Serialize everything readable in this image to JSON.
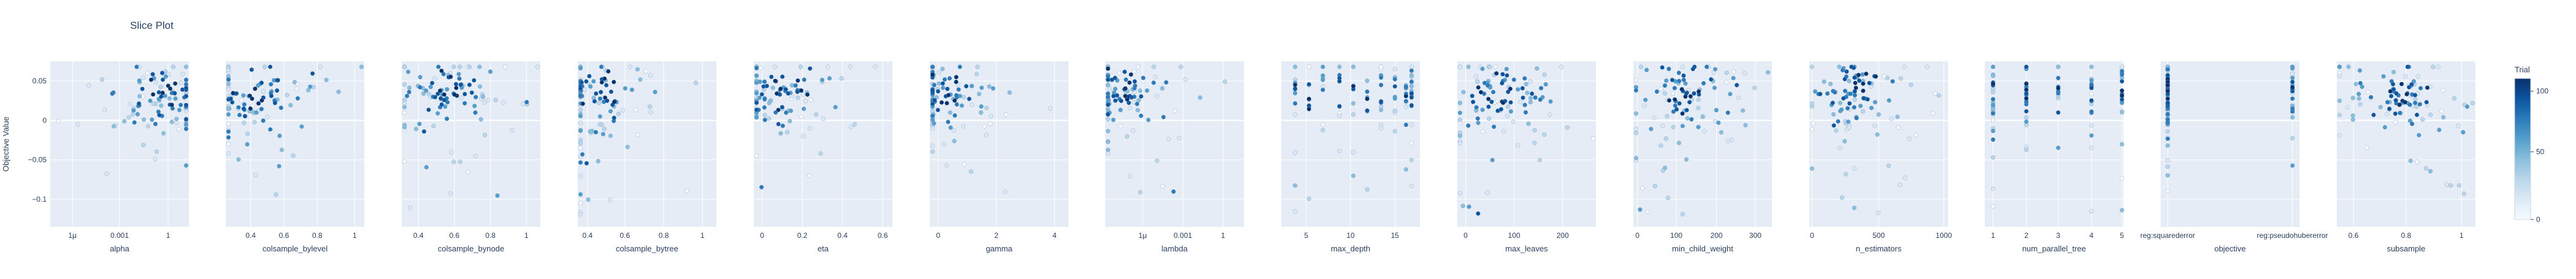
{
  "title": "Slice Plot",
  "ylabel": "Objective Value",
  "colorbar": {
    "title": "Trial",
    "ticks": [
      "100",
      "50",
      "0"
    ],
    "colors": [
      "#f7fbff",
      "#dbe9f6",
      "#bad6eb",
      "#89bedc",
      "#539ecd",
      "#2b7bba",
      "#0b559f",
      "#08306b"
    ]
  },
  "yticks": [
    "0.05",
    "0",
    "−0.05",
    "−0.1"
  ],
  "chart_data": [
    {
      "type": "scatter",
      "xlabel": "alpha",
      "xticks": [
        "1μ",
        "0.001",
        "1"
      ]
    },
    {
      "type": "scatter",
      "xlabel": "colsample_bylevel",
      "xticks": [
        "0.4",
        "0.6",
        "0.8",
        "1"
      ]
    },
    {
      "type": "scatter",
      "xlabel": "colsample_bynode",
      "xticks": [
        "0.4",
        "0.6",
        "0.8",
        "1"
      ]
    },
    {
      "type": "scatter",
      "xlabel": "colsample_bytree",
      "xticks": [
        "0.4",
        "0.6",
        "0.8",
        "1"
      ]
    },
    {
      "type": "scatter",
      "xlabel": "eta",
      "xticks": [
        "0",
        "0.2",
        "0.4",
        "0.6"
      ]
    },
    {
      "type": "scatter",
      "xlabel": "gamma",
      "xticks": [
        "0",
        "2",
        "4"
      ]
    },
    {
      "type": "scatter",
      "xlabel": "lambda",
      "xticks": [
        "1μ",
        "0.001",
        "1"
      ]
    },
    {
      "type": "scatter",
      "xlabel": "max_depth",
      "xticks": [
        "5",
        "10",
        "15"
      ]
    },
    {
      "type": "scatter",
      "xlabel": "max_leaves",
      "xticks": [
        "0",
        "100",
        "200"
      ]
    },
    {
      "type": "scatter",
      "xlabel": "min_child_weight",
      "xticks": [
        "0",
        "100",
        "200",
        "300"
      ]
    },
    {
      "type": "scatter",
      "xlabel": "n_estimators",
      "xticks": [
        "0",
        "500",
        "1000"
      ]
    },
    {
      "type": "scatter",
      "xlabel": "num_parallel_tree",
      "xticks": [
        "1",
        "2",
        "3",
        "4",
        "5"
      ]
    },
    {
      "type": "scatter",
      "xlabel": "objective",
      "xticks": [
        "reg:squarederror",
        "reg:pseudohubererror"
      ]
    },
    {
      "type": "scatter",
      "xlabel": "subsample",
      "xticks": [
        "0.6",
        "0.8",
        "1"
      ]
    }
  ]
}
